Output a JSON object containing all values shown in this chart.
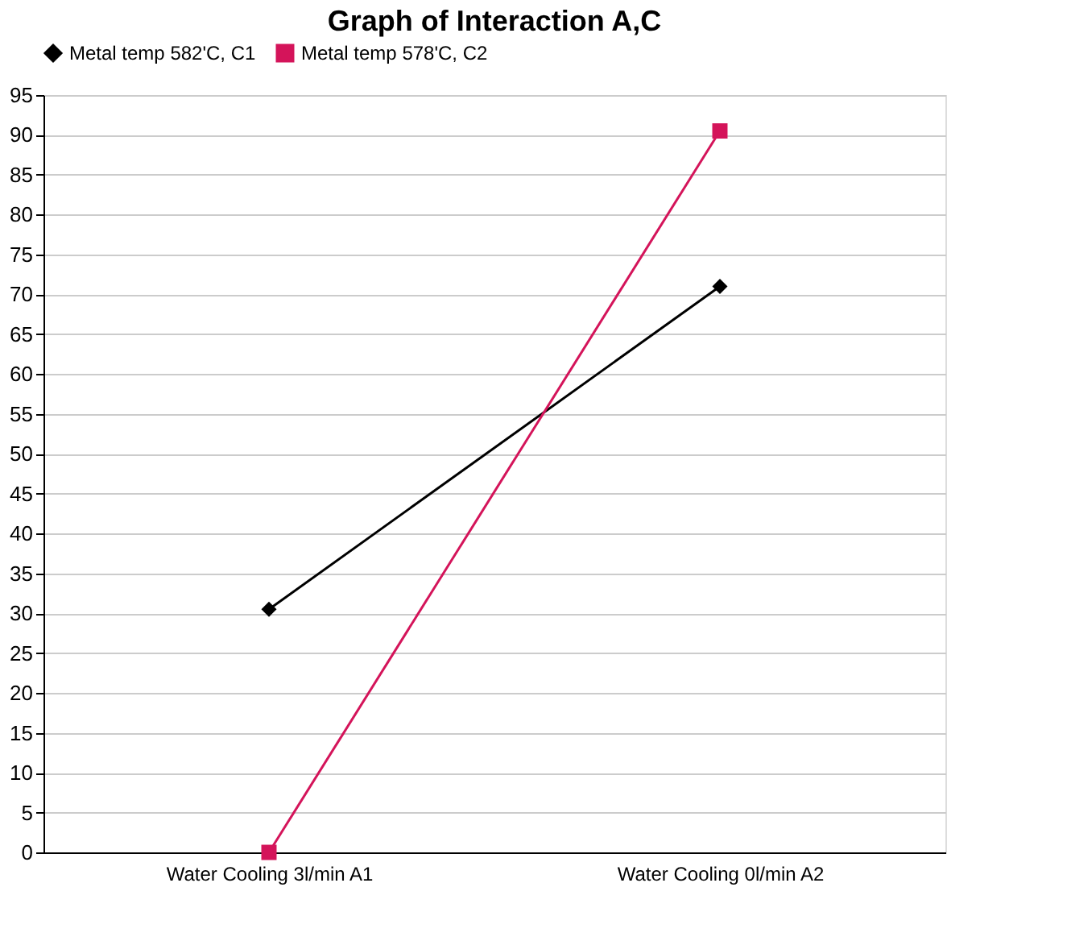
{
  "chart_data": {
    "type": "line",
    "title": "Graph of Interaction A,C",
    "categories": [
      "Water Cooling 3l/min A1",
      "Water Cooling 0l/min A2"
    ],
    "series": [
      {
        "name": "Metal temp 582'C, C1",
        "color": "#000000",
        "marker": "diamond",
        "values": [
          30.5,
          71
        ]
      },
      {
        "name": "Metal temp 578'C, C2",
        "color": "#d4145a",
        "marker": "square",
        "values": [
          0,
          90.5
        ]
      }
    ],
    "ylim": [
      0,
      95
    ],
    "yticks": [
      0,
      5,
      10,
      15,
      20,
      25,
      30,
      35,
      40,
      45,
      50,
      55,
      60,
      65,
      70,
      75,
      80,
      85,
      90,
      95
    ],
    "grid": "y",
    "legend": "top",
    "line_style": "solid"
  }
}
